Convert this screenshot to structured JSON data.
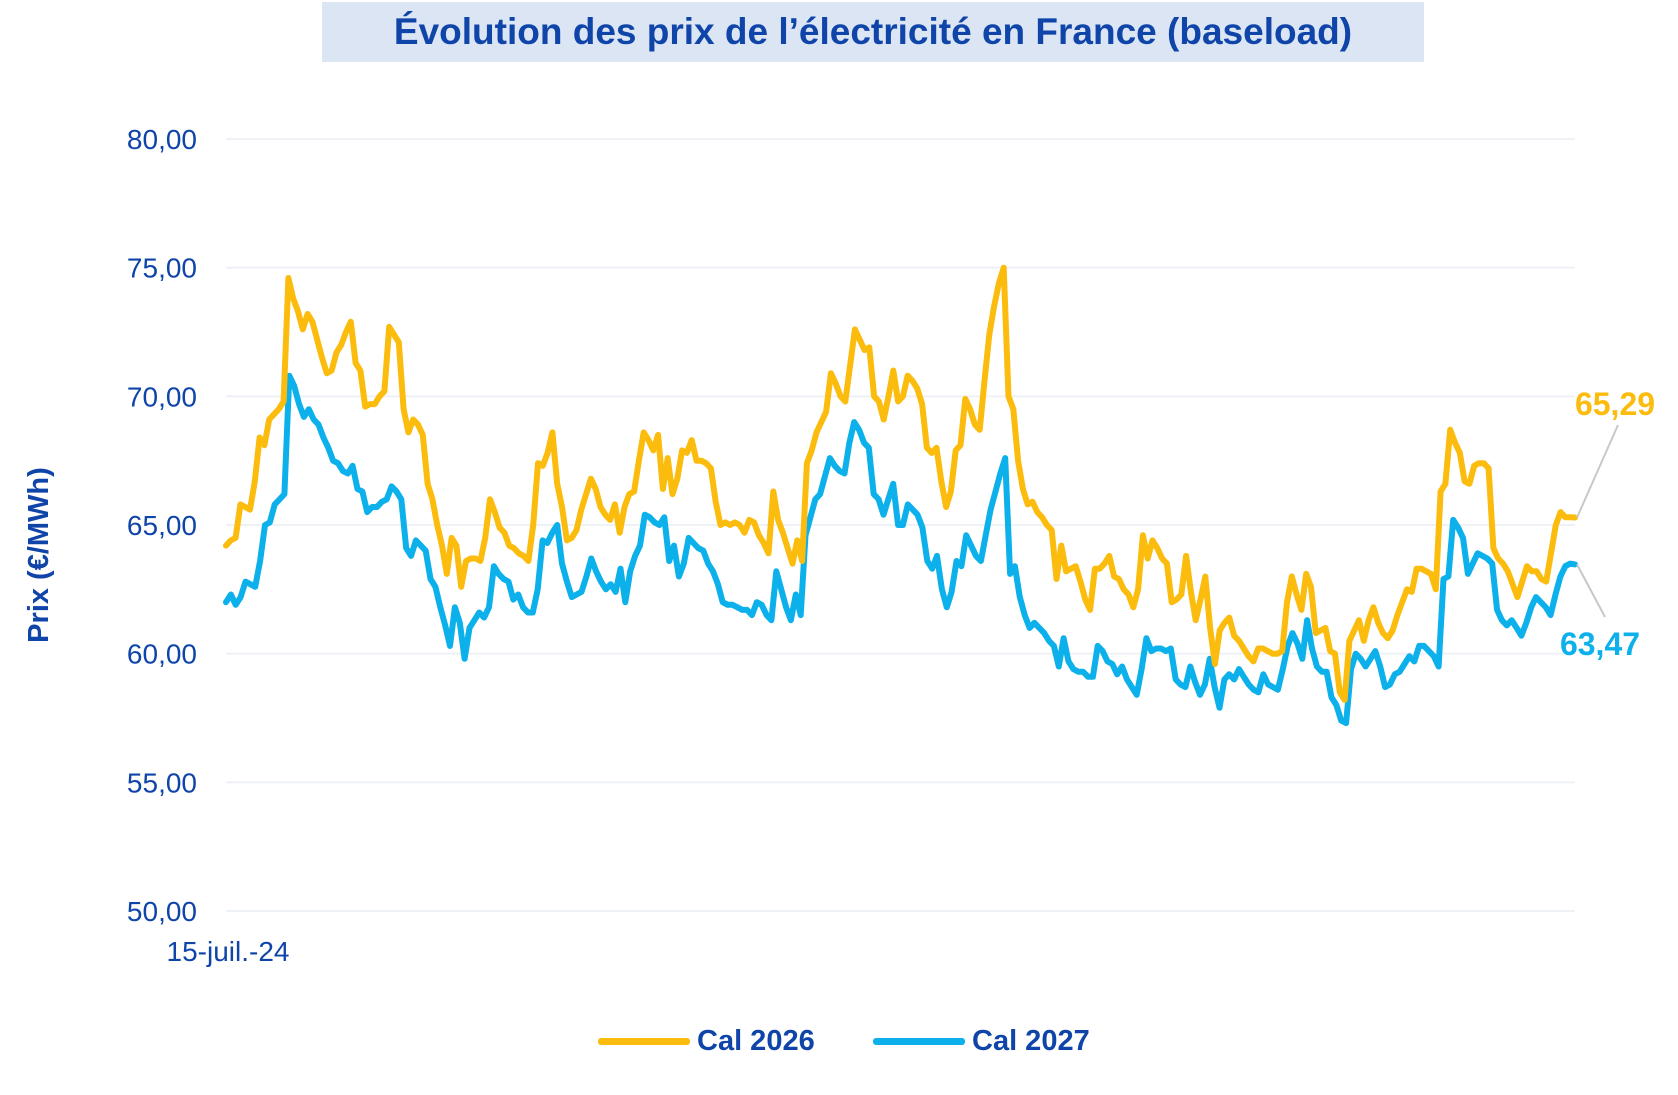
{
  "chart_data": {
    "type": "line",
    "title": "Évolution des prix de l’électricité en France (baseload)",
    "ylabel": "Prix (€/MWh)",
    "xlabel": "",
    "ylim": [
      50,
      80
    ],
    "yticks": [
      "50,00",
      "55,00",
      "60,00",
      "65,00",
      "70,00",
      "75,00",
      "80,00"
    ],
    "xtick_labels": [
      "15-juil.-24"
    ],
    "grid": "horizontal",
    "legend_position": "bottom",
    "series": [
      {
        "name": "Cal 2026",
        "color": "#fbbc0e",
        "end_label": "65,29",
        "values": [
          64.2,
          64.4,
          64.5,
          65.8,
          65.7,
          65.6,
          66.7,
          68.4,
          68.1,
          69.1,
          69.3,
          69.5,
          69.8,
          74.6,
          73.8,
          73.3,
          72.6,
          73.2,
          72.9,
          72.2,
          71.5,
          70.9,
          71.0,
          71.7,
          72.0,
          72.5,
          72.9,
          71.3,
          71.0,
          69.6,
          69.7,
          69.7,
          70.0,
          70.2,
          72.7,
          72.4,
          72.1,
          69.5,
          68.6,
          69.1,
          68.9,
          68.5,
          66.6,
          66.0,
          65.0,
          64.2,
          63.1,
          64.5,
          64.2,
          62.6,
          63.6,
          63.7,
          63.7,
          63.6,
          64.5,
          66.0,
          65.5,
          64.9,
          64.7,
          64.2,
          64.1,
          63.9,
          63.8,
          63.6,
          65.0,
          67.4,
          67.3,
          67.8,
          68.6,
          66.6,
          65.7,
          64.4,
          64.5,
          64.8,
          65.6,
          66.2,
          66.8,
          66.4,
          65.7,
          65.4,
          65.2,
          65.8,
          64.7,
          65.7,
          66.2,
          66.3,
          67.5,
          68.6,
          68.3,
          67.9,
          68.5,
          66.4,
          67.6,
          66.2,
          66.8,
          67.9,
          67.8,
          68.3,
          67.5,
          67.5,
          67.4,
          67.2,
          65.9,
          65.0,
          65.1,
          65.0,
          65.1,
          65.0,
          64.7,
          65.2,
          65.1,
          64.6,
          64.3,
          63.9,
          66.3,
          65.2,
          64.7,
          64.1,
          63.5,
          64.4,
          63.6,
          67.4,
          67.9,
          68.6,
          69.0,
          69.4,
          70.9,
          70.5,
          70.0,
          69.8,
          71.2,
          72.6,
          72.2,
          71.8,
          71.9,
          70.0,
          69.8,
          69.1,
          70.0,
          71.0,
          69.8,
          70.0,
          70.8,
          70.6,
          70.3,
          69.7,
          68.0,
          67.8,
          68.0,
          66.7,
          65.7,
          66.3,
          67.9,
          68.1,
          69.9,
          69.5,
          68.9,
          68.7,
          70.6,
          72.4,
          73.5,
          74.4,
          75.0,
          70.0,
          69.5,
          67.5,
          66.4,
          65.8,
          65.9,
          65.5,
          65.3,
          65.0,
          64.8,
          62.9,
          64.2,
          63.2,
          63.3,
          63.4,
          62.8,
          62.1,
          61.7,
          63.3,
          63.3,
          63.5,
          63.8,
          63.0,
          62.9,
          62.5,
          62.3,
          61.8,
          62.5,
          64.6,
          63.7,
          64.4,
          64.1,
          63.7,
          63.5,
          62.0,
          62.1,
          62.3,
          63.8,
          62.4,
          61.3,
          62.1,
          63.0,
          61.0,
          59.6,
          60.9,
          61.2,
          61.4,
          60.7,
          60.5,
          60.2,
          59.9,
          59.7,
          60.2,
          60.2,
          60.1,
          60.0,
          60.0,
          60.1,
          62.0,
          63.0,
          62.3,
          61.7,
          63.1,
          62.6,
          60.8,
          60.9,
          61.0,
          60.1,
          60.0,
          58.5,
          58.2,
          60.5,
          60.9,
          61.3,
          60.5,
          61.3,
          61.8,
          61.2,
          60.8,
          60.6,
          60.9,
          61.5,
          62.0,
          62.5,
          62.4,
          63.3,
          63.3,
          63.2,
          63.1,
          62.5,
          66.3,
          66.6,
          68.7,
          68.2,
          67.8,
          66.7,
          66.6,
          67.3,
          67.4,
          67.4,
          67.2,
          64.1,
          63.7,
          63.5,
          63.2,
          62.7,
          62.2,
          62.8,
          63.4,
          63.2,
          63.2,
          62.9,
          62.8,
          63.9,
          65.0,
          65.5,
          65.3,
          65.3,
          65.29
        ]
      },
      {
        "name": "Cal 2027",
        "color": "#0cb0ea",
        "end_label": "63,47",
        "values": [
          62.0,
          62.3,
          61.9,
          62.2,
          62.8,
          62.7,
          62.6,
          63.6,
          65.0,
          65.1,
          65.8,
          66.0,
          66.2,
          70.8,
          70.4,
          69.7,
          69.2,
          69.5,
          69.1,
          68.9,
          68.4,
          68.0,
          67.5,
          67.4,
          67.1,
          67.0,
          67.3,
          66.4,
          66.3,
          65.5,
          65.7,
          65.7,
          65.9,
          66.0,
          66.5,
          66.3,
          66.0,
          64.1,
          63.8,
          64.4,
          64.2,
          64.0,
          62.9,
          62.6,
          61.8,
          61.1,
          60.3,
          61.8,
          61.2,
          59.8,
          61.0,
          61.3,
          61.6,
          61.4,
          61.8,
          63.4,
          63.1,
          62.9,
          62.8,
          62.1,
          62.3,
          61.8,
          61.6,
          61.6,
          62.5,
          64.4,
          64.3,
          64.7,
          65.0,
          63.5,
          62.8,
          62.2,
          62.3,
          62.4,
          63.0,
          63.7,
          63.2,
          62.8,
          62.5,
          62.7,
          62.4,
          63.3,
          62.0,
          63.2,
          63.8,
          64.2,
          65.4,
          65.3,
          65.1,
          65.0,
          65.3,
          63.6,
          64.2,
          63.0,
          63.5,
          64.5,
          64.3,
          64.1,
          64.0,
          63.5,
          63.2,
          62.7,
          62.0,
          61.9,
          61.9,
          61.8,
          61.7,
          61.7,
          61.5,
          62.0,
          61.9,
          61.5,
          61.3,
          63.2,
          62.5,
          61.8,
          61.3,
          62.3,
          61.5,
          64.6,
          65.3,
          66.0,
          66.2,
          66.9,
          67.6,
          67.3,
          67.1,
          67.0,
          68.2,
          69.0,
          68.7,
          68.2,
          68.0,
          66.2,
          66.0,
          65.4,
          66.0,
          66.6,
          65.0,
          65.0,
          65.8,
          65.6,
          65.4,
          64.9,
          63.6,
          63.3,
          63.8,
          62.5,
          61.8,
          62.4,
          63.6,
          63.4,
          64.6,
          64.2,
          63.8,
          63.6,
          64.6,
          65.6,
          66.3,
          67.0,
          67.6,
          63.1,
          63.4,
          62.2,
          61.5,
          61.0,
          61.2,
          61.0,
          60.8,
          60.5,
          60.3,
          59.5,
          60.6,
          59.7,
          59.4,
          59.3,
          59.3,
          59.1,
          59.1,
          60.3,
          60.1,
          59.7,
          59.6,
          59.2,
          59.5,
          59.0,
          58.7,
          58.4,
          59.4,
          60.6,
          60.1,
          60.2,
          60.2,
          60.1,
          60.2,
          59.0,
          58.8,
          58.7,
          59.5,
          58.9,
          58.4,
          58.8,
          59.8,
          58.7,
          57.9,
          59.0,
          59.2,
          59.0,
          59.4,
          59.1,
          58.8,
          58.6,
          58.5,
          59.2,
          58.8,
          58.7,
          58.6,
          59.4,
          60.3,
          60.8,
          60.4,
          59.8,
          61.3,
          60.2,
          59.5,
          59.3,
          59.3,
          58.3,
          58.0,
          57.4,
          57.3,
          59.4,
          60.0,
          59.8,
          59.5,
          59.8,
          60.1,
          59.5,
          58.7,
          58.8,
          59.2,
          59.3,
          59.6,
          59.9,
          59.7,
          60.3,
          60.3,
          60.1,
          59.9,
          59.5,
          62.9,
          63.0,
          65.2,
          64.9,
          64.5,
          63.1,
          63.5,
          63.9,
          63.8,
          63.7,
          63.5,
          61.7,
          61.3,
          61.1,
          61.3,
          61.0,
          60.7,
          61.2,
          61.8,
          62.2,
          62.0,
          61.8,
          61.5,
          62.3,
          63.0,
          63.4,
          63.5,
          63.47
        ]
      }
    ]
  }
}
